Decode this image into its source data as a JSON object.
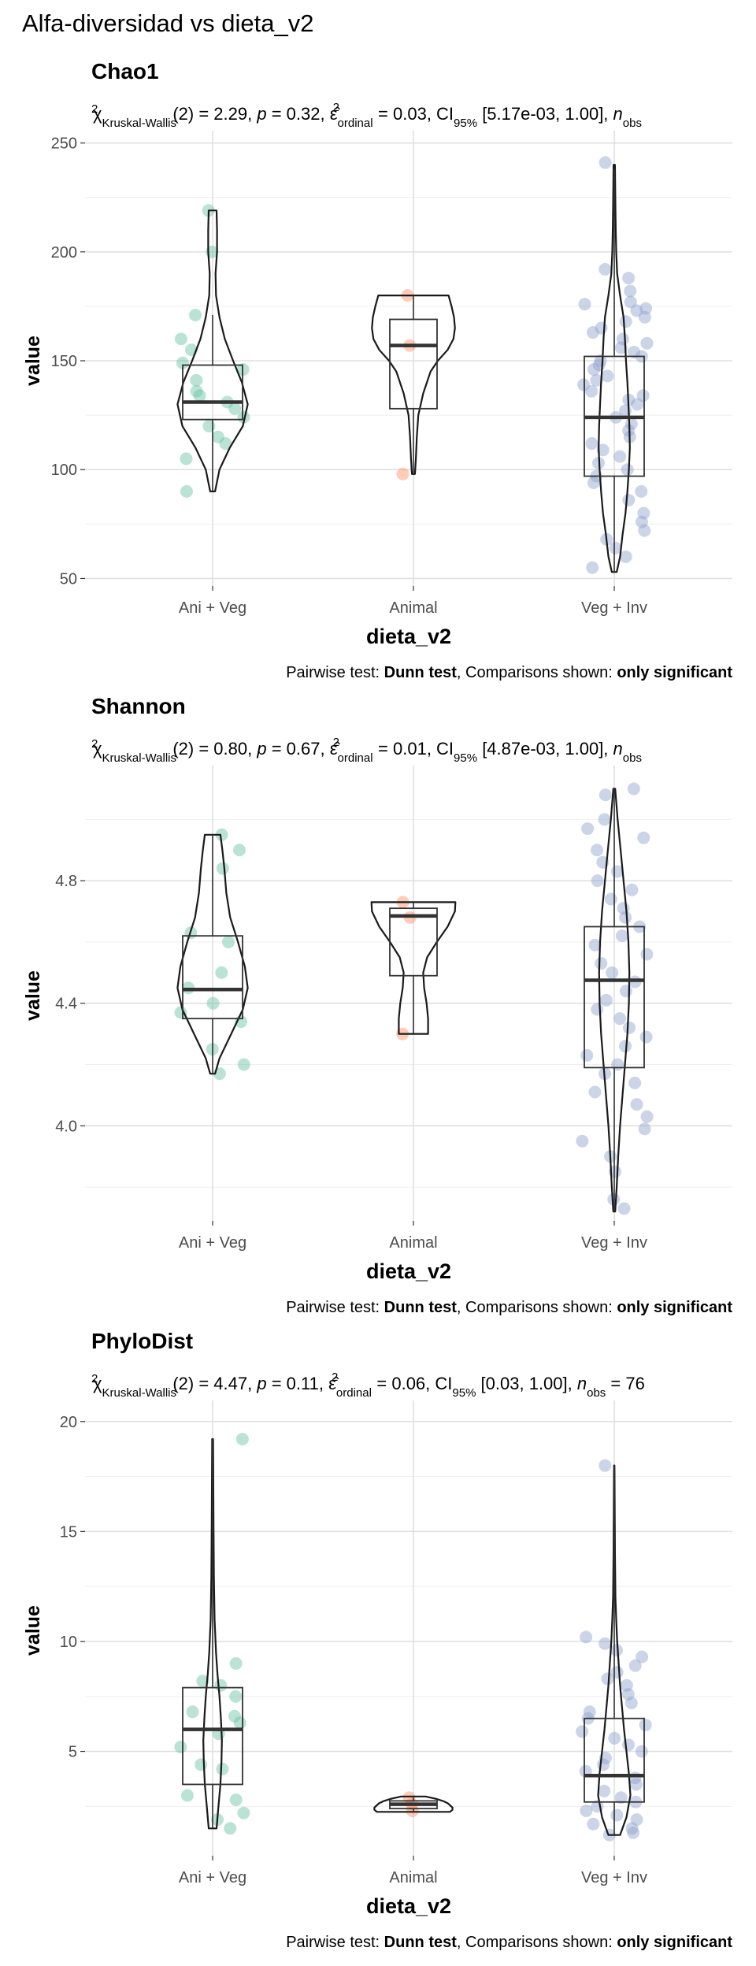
{
  "page_title": "Alfa-diversidad vs dieta_v2",
  "colors": {
    "ani_veg": "#66c2a5",
    "animal": "#fc8d62",
    "veg_inv": "#8da0cb",
    "grid_major": "#e0e0e0",
    "grid_minor": "#efefef",
    "outline": "#1a1a1a",
    "box": "#333333",
    "text": "#000000",
    "axis_text": "#4d4d4d"
  },
  "chart_data": [
    {
      "type": "violin",
      "title": "Chao1",
      "subtitle": {
        "chi": "χ",
        "chi_sup": "2",
        "chi_sub": "Kruskal-Wallis",
        "stat": "(2) = 2.29, ",
        "p_label": "p",
        "p_text": " = 0.32, ",
        "eps": "ε̂",
        "eps_sup": "2",
        "eps_sub": "ordinal",
        "eps_text": " = 0.03, CI",
        "ci_sub": "95%",
        "ci_text": " [5.17e-03, 1.00], ",
        "n_label": "n",
        "n_sub": "obs",
        "n_text": ""
      },
      "xlabel": "dieta_v2",
      "ylabel": "value",
      "caption": {
        "prefix": "Pairwise test: ",
        "test": "Dunn test",
        "middle": ", Comparisons shown: ",
        "shown": "only significant"
      },
      "categories": [
        "Ani + Veg",
        "Animal",
        "Veg + Inv"
      ],
      "ylim": [
        48,
        252
      ],
      "yticks": [
        50,
        100,
        150,
        200,
        250
      ],
      "yminor": [
        75,
        125,
        175,
        225
      ],
      "boxes": [
        {
          "min": 90,
          "q1": 123,
          "median": 131,
          "q3": 148,
          "max": 171
        },
        {
          "min": 98,
          "q1": 128,
          "median": 157,
          "q3": 169,
          "max": 180
        },
        {
          "min": 53,
          "q1": 97,
          "median": 124,
          "q3": 152,
          "max": 238
        }
      ],
      "violins": [
        {
          "y": [
            90,
            100,
            110,
            120,
            130,
            140,
            150,
            160,
            170,
            180,
            190,
            200,
            210,
            219
          ],
          "w": [
            0.05,
            0.14,
            0.35,
            0.62,
            0.72,
            0.6,
            0.42,
            0.25,
            0.14,
            0.07,
            0.06,
            0.09,
            0.09,
            0.08
          ]
        },
        {
          "y": [
            98,
            105,
            115,
            125,
            135,
            145,
            150,
            155,
            160,
            165,
            170,
            175,
            180
          ],
          "w": [
            0.03,
            0.05,
            0.07,
            0.1,
            0.2,
            0.35,
            0.5,
            0.7,
            0.82,
            0.85,
            0.83,
            0.78,
            0.72
          ]
        },
        {
          "y": [
            53,
            60,
            70,
            80,
            90,
            100,
            110,
            120,
            130,
            140,
            150,
            160,
            170,
            180,
            190,
            200,
            210,
            220,
            230,
            240
          ],
          "w": [
            0.05,
            0.12,
            0.17,
            0.23,
            0.27,
            0.3,
            0.32,
            0.31,
            0.29,
            0.27,
            0.24,
            0.22,
            0.19,
            0.12,
            0.06,
            0.04,
            0.03,
            0.025,
            0.02,
            0.015
          ]
        }
      ],
      "points": [
        [
          219,
          200,
          171,
          160,
          155,
          149,
          146,
          141,
          136,
          134,
          131,
          128,
          124,
          120,
          115,
          112,
          105,
          90
        ],
        [
          180,
          157,
          98
        ],
        [
          241,
          192,
          188,
          182,
          177,
          176,
          174,
          173,
          170,
          168,
          165,
          163,
          160,
          158,
          156,
          154,
          152,
          150,
          148,
          146,
          143,
          141,
          139,
          136,
          134,
          132,
          130,
          127,
          124,
          121,
          118,
          115,
          112,
          109,
          106,
          103,
          100,
          97,
          94,
          90,
          86,
          80,
          76,
          72,
          68,
          64,
          60,
          55
        ]
      ]
    },
    {
      "type": "violin",
      "title": "Shannon",
      "subtitle": {
        "chi": "χ",
        "chi_sup": "2",
        "chi_sub": "Kruskal-Wallis",
        "stat": "(2) = 0.80, ",
        "p_label": "p",
        "p_text": " = 0.67, ",
        "eps": "ε̂",
        "eps_sup": "2",
        "eps_sub": "ordinal",
        "eps_text": " = 0.01, CI",
        "ci_sub": "95%",
        "ci_text": " [4.87e-03, 1.00], ",
        "n_label": "n",
        "n_sub": "obs",
        "n_text": ""
      },
      "xlabel": "dieta_v2",
      "ylabel": "value",
      "caption": {
        "prefix": "Pairwise test: ",
        "test": "Dunn test",
        "middle": ", Comparisons shown: ",
        "shown": "only significant"
      },
      "categories": [
        "Ani + Veg",
        "Animal",
        "Veg + Inv"
      ],
      "ylim": [
        3.7,
        5.15
      ],
      "yticks": [
        4.0,
        4.4,
        4.8
      ],
      "ytick_labels": [
        "4.0",
        "4.4",
        "4.8"
      ],
      "yminor": [
        3.8,
        4.2,
        4.6,
        5.0
      ],
      "boxes": [
        {
          "min": 4.17,
          "q1": 4.35,
          "median": 4.445,
          "q3": 4.62,
          "max": 4.95
        },
        {
          "min": 4.3,
          "q1": 4.49,
          "median": 4.685,
          "q3": 4.71,
          "max": 4.73
        },
        {
          "min": 3.72,
          "q1": 4.19,
          "median": 4.475,
          "q3": 4.65,
          "max": 5.1
        }
      ],
      "violins": [
        {
          "y": [
            4.17,
            4.22,
            4.3,
            4.38,
            4.45,
            4.52,
            4.6,
            4.68,
            4.76,
            4.84,
            4.9,
            4.95
          ],
          "w": [
            0.05,
            0.14,
            0.38,
            0.62,
            0.72,
            0.66,
            0.52,
            0.36,
            0.28,
            0.24,
            0.2,
            0.16
          ]
        },
        {
          "y": [
            4.3,
            4.35,
            4.4,
            4.45,
            4.5,
            4.55,
            4.6,
            4.65,
            4.7,
            4.73
          ],
          "w": [
            0.3,
            0.3,
            0.27,
            0.22,
            0.2,
            0.28,
            0.48,
            0.7,
            0.85,
            0.86
          ]
        },
        {
          "y": [
            3.72,
            3.8,
            3.9,
            4.0,
            4.1,
            4.2,
            4.3,
            4.4,
            4.5,
            4.6,
            4.7,
            4.8,
            4.9,
            5.0,
            5.1
          ],
          "w": [
            0.02,
            0.05,
            0.08,
            0.12,
            0.17,
            0.22,
            0.27,
            0.3,
            0.31,
            0.29,
            0.25,
            0.19,
            0.13,
            0.07,
            0.02
          ]
        }
      ],
      "points": [
        [
          4.95,
          4.9,
          4.84,
          4.63,
          4.6,
          4.5,
          4.45,
          4.4,
          4.37,
          4.34,
          4.25,
          4.2,
          4.17
        ],
        [
          4.73,
          4.68,
          4.3
        ],
        [
          5.1,
          5.08,
          5.0,
          4.97,
          4.94,
          4.9,
          4.86,
          4.83,
          4.8,
          4.77,
          4.74,
          4.71,
          4.68,
          4.65,
          4.62,
          4.59,
          4.56,
          4.53,
          4.5,
          4.47,
          4.44,
          4.41,
          4.38,
          4.35,
          4.32,
          4.29,
          4.26,
          4.23,
          4.2,
          4.17,
          4.14,
          4.11,
          4.07,
          4.03,
          3.99,
          3.95,
          3.9,
          3.85,
          3.76,
          3.73
        ]
      ]
    },
    {
      "type": "violin",
      "title": "PhyloDist",
      "subtitle": {
        "chi": "χ",
        "chi_sup": "2",
        "chi_sub": "Kruskal-Wallis",
        "stat": "(2) = 4.47, ",
        "p_label": "p",
        "p_text": " = 0.11, ",
        "eps": "ε̂",
        "eps_sup": "2",
        "eps_sub": "ordinal",
        "eps_text": " = 0.06, CI",
        "ci_sub": "95%",
        "ci_text": " [0.03, 1.00], ",
        "n_label": "n",
        "n_sub": "obs",
        "n_text": " = 76"
      },
      "xlabel": "dieta_v2",
      "ylabel": "value",
      "caption": {
        "prefix": "Pairwise test: ",
        "test": "Dunn test",
        "middle": ", Comparisons shown: ",
        "shown": "only significant"
      },
      "categories": [
        "Ani + Veg",
        "Animal",
        "Veg + Inv"
      ],
      "ylim": [
        0.4,
        20.6
      ],
      "yticks": [
        5,
        10,
        15,
        20
      ],
      "yminor": [
        2.5,
        7.5,
        12.5,
        17.5
      ],
      "boxes": [
        {
          "min": 1.5,
          "q1": 3.5,
          "median": 6.0,
          "q3": 7.9,
          "max": 19.2
        },
        {
          "min": 2.25,
          "q1": 2.4,
          "median": 2.6,
          "q3": 2.75,
          "max": 2.9
        },
        {
          "min": 1.2,
          "q1": 2.7,
          "median": 3.9,
          "q3": 6.5,
          "max": 18.0
        }
      ],
      "violins": [
        {
          "y": [
            1.5,
            2.5,
            3.5,
            4.5,
            5.5,
            6.5,
            7.5,
            8.5,
            9.5,
            11,
            13,
            15,
            17,
            19.2
          ],
          "w": [
            0.08,
            0.12,
            0.16,
            0.18,
            0.19,
            0.17,
            0.14,
            0.1,
            0.07,
            0.04,
            0.025,
            0.02,
            0.015,
            0.01
          ]
        },
        {
          "y": [
            2.25,
            2.35,
            2.45,
            2.55,
            2.65,
            2.75,
            2.85,
            2.95
          ],
          "w": [
            0.75,
            0.8,
            0.8,
            0.75,
            0.7,
            0.6,
            0.45,
            0.25
          ]
        },
        {
          "y": [
            1.2,
            2,
            3,
            4,
            5,
            6,
            7,
            8,
            9,
            10,
            11,
            12,
            14,
            16,
            18
          ],
          "w": [
            0.12,
            0.25,
            0.33,
            0.3,
            0.25,
            0.2,
            0.16,
            0.12,
            0.09,
            0.06,
            0.04,
            0.025,
            0.015,
            0.01,
            0.005
          ]
        }
      ],
      "points": [
        [
          19.2,
          9.0,
          8.2,
          8.0,
          7.5,
          6.8,
          6.6,
          6.3,
          5.8,
          5.2,
          4.4,
          4.2,
          3.0,
          2.8,
          2.2,
          1.9,
          1.5
        ],
        [
          2.9,
          2.6,
          2.3
        ],
        [
          18.0,
          10.2,
          9.9,
          9.6,
          9.3,
          8.9,
          8.6,
          8.3,
          8.0,
          7.6,
          7.2,
          6.8,
          6.5,
          6.2,
          5.9,
          5.6,
          5.3,
          5.0,
          4.7,
          4.4,
          4.1,
          3.8,
          3.5,
          3.2,
          2.9,
          2.7,
          2.5,
          2.3,
          2.1,
          1.9,
          1.7,
          1.5,
          1.3,
          1.2
        ]
      ]
    }
  ]
}
